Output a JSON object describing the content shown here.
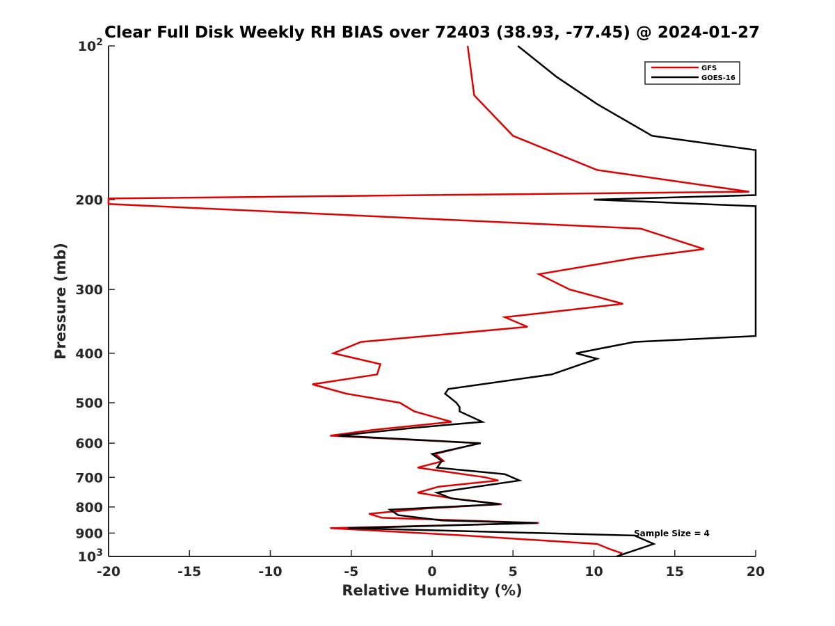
{
  "chart_data": {
    "type": "line",
    "title": "Clear Full Disk Weekly RH BIAS over 72403 (38.93, -77.45) @ 2024-01-27",
    "xlabel": "Relative Humidity (%)",
    "ylabel": "Pressure (mb)",
    "xlim": [
      -20,
      20
    ],
    "ylim": [
      100,
      1000
    ],
    "yscale": "log",
    "y_reversed": true,
    "x_ticks": [
      "-20",
      "-15",
      "-10",
      "-5",
      "0",
      "5",
      "10",
      "15",
      "20"
    ],
    "x_tick_values": [
      -20,
      -15,
      -10,
      -5,
      0,
      5,
      10,
      15,
      20
    ],
    "y_tick_values": [
      100,
      200,
      300,
      400,
      500,
      600,
      700,
      800,
      900,
      1000
    ],
    "y_ticks": [
      {
        "base": "10",
        "exp": "2"
      },
      {
        "base": "200",
        "exp": ""
      },
      {
        "base": "300",
        "exp": ""
      },
      {
        "base": "400",
        "exp": ""
      },
      {
        "base": "500",
        "exp": ""
      },
      {
        "base": "600",
        "exp": ""
      },
      {
        "base": "700",
        "exp": ""
      },
      {
        "base": "800",
        "exp": ""
      },
      {
        "base": "900",
        "exp": ""
      },
      {
        "base": "10",
        "exp": "3"
      }
    ],
    "grid": false,
    "legend_position": "top-right",
    "annotation": "Sample Size = 4",
    "series": [
      {
        "name": "GFS",
        "color": "#e00000",
        "points": [
          [
            2.2,
            100
          ],
          [
            2.6,
            125
          ],
          [
            5.0,
            150
          ],
          [
            10.2,
            175
          ],
          [
            19.6,
            193
          ],
          [
            -20,
            199
          ],
          [
            -20,
            204
          ],
          [
            12.9,
            228
          ],
          [
            16.8,
            250
          ],
          [
            12.6,
            260
          ],
          [
            6.6,
            280
          ],
          [
            8.5,
            300
          ],
          [
            11.8,
            320
          ],
          [
            4.5,
            340
          ],
          [
            5.9,
            355
          ],
          [
            -4.4,
            380
          ],
          [
            -6.1,
            400
          ],
          [
            -3.2,
            420
          ],
          [
            -3.4,
            440
          ],
          [
            -7.4,
            460
          ],
          [
            -5.3,
            480
          ],
          [
            -2.0,
            500
          ],
          [
            -1.1,
            520
          ],
          [
            1.2,
            545
          ],
          [
            -3.6,
            565
          ],
          [
            -6.3,
            580
          ],
          [
            2.9,
            600
          ],
          [
            0.2,
            630
          ],
          [
            0.7,
            650
          ],
          [
            -0.9,
            670
          ],
          [
            3.3,
            700
          ],
          [
            4.1,
            710
          ],
          [
            0.4,
            730
          ],
          [
            -0.9,
            750
          ],
          [
            1.3,
            770
          ],
          [
            4.3,
            790
          ],
          [
            -0.3,
            805
          ],
          [
            -3.9,
            825
          ],
          [
            -3.1,
            840
          ],
          [
            6.6,
            860
          ],
          [
            -6.3,
            880
          ],
          [
            2.0,
            910
          ],
          [
            10.2,
            945
          ],
          [
            11.0,
            968
          ],
          [
            11.7,
            985
          ],
          [
            11.6,
            1000
          ]
        ]
      },
      {
        "name": "GOES-16",
        "color": "#000000",
        "points": [
          [
            5.3,
            100
          ],
          [
            7.7,
            115
          ],
          [
            10.2,
            130
          ],
          [
            13.6,
            150
          ],
          [
            20,
            160
          ],
          [
            20,
            196
          ],
          [
            10.0,
            200
          ],
          [
            20,
            206
          ],
          [
            20,
            370
          ],
          [
            12.5,
            380
          ],
          [
            8.9,
            400
          ],
          [
            10.2,
            410
          ],
          [
            7.4,
            440
          ],
          [
            1.0,
            470
          ],
          [
            0.8,
            480
          ],
          [
            1.5,
            500
          ],
          [
            1.7,
            510
          ],
          [
            1.7,
            520
          ],
          [
            3.1,
            545
          ],
          [
            -1.2,
            560
          ],
          [
            -5.8,
            580
          ],
          [
            3.0,
            600
          ],
          [
            0.0,
            630
          ],
          [
            0.6,
            650
          ],
          [
            0.3,
            670
          ],
          [
            4.5,
            690
          ],
          [
            5.4,
            710
          ],
          [
            1.5,
            740
          ],
          [
            0.3,
            750
          ],
          [
            1.2,
            770
          ],
          [
            4.2,
            790
          ],
          [
            -2.6,
            810
          ],
          [
            -2.1,
            830
          ],
          [
            0.6,
            850
          ],
          [
            6.5,
            860
          ],
          [
            -5.2,
            880
          ],
          [
            12.5,
            910
          ],
          [
            13.7,
            945
          ],
          [
            11.4,
            1000
          ]
        ]
      }
    ]
  }
}
